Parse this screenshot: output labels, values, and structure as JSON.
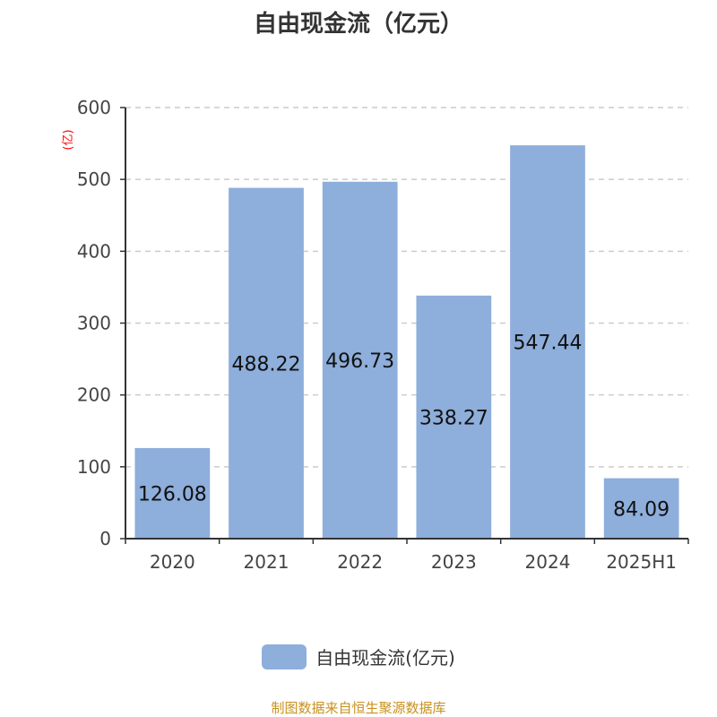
{
  "chart_data": {
    "type": "bar",
    "title": "自由现金流（亿元）",
    "ylabel": "(亿)",
    "categories": [
      "2020",
      "2021",
      "2022",
      "2023",
      "2024",
      "2025H1"
    ],
    "series": [
      {
        "name": "自由现金流(亿元)",
        "values": [
          126.08,
          488.22,
          496.73,
          338.27,
          547.44,
          84.09
        ],
        "color": "#8eaedb"
      }
    ],
    "data_labels": [
      "126.08",
      "488.22",
      "496.73",
      "338.27",
      "547.44",
      "84.09"
    ],
    "ylim": [
      0,
      600
    ],
    "yticks": [
      0,
      100,
      200,
      300,
      400,
      500,
      600
    ],
    "grid": true,
    "legend_position": "bottom"
  },
  "footer": "制图数据来自恒生聚源数据库"
}
